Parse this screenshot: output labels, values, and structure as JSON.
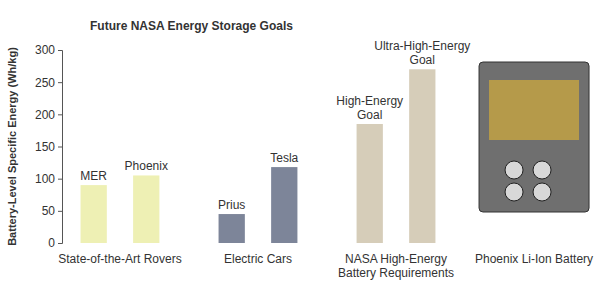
{
  "chart_data": {
    "type": "bar",
    "title": "Future NASA Energy Storage Goals",
    "y_label": "Battery-Level Specific Energy (Wh/kg)",
    "groups": [
      {
        "name": "State-of-the-Art Rovers",
        "categories": [
          "MER",
          "Phoenix"
        ],
        "values": [
          90,
          105
        ],
        "color": "#eef0b4"
      },
      {
        "name": "Electric Cars",
        "categories": [
          "Prius",
          "Tesla"
        ],
        "values": [
          45,
          118
        ],
        "color": "#7d8599"
      },
      {
        "name": "NASA High-Energy Battery Requirements",
        "categories": [
          "High-Energy Goal",
          "Ultra-High-Energy Goal"
        ],
        "values": [
          185,
          270
        ],
        "color": "#d6cdb9"
      },
      {
        "name": "Phoenix Li-Ion Battery",
        "categories": [],
        "values": []
      }
    ],
    "ylim": [
      0,
      300
    ],
    "yticks": [
      0,
      50,
      100,
      150,
      200,
      250,
      300
    ],
    "grid": false
  }
}
